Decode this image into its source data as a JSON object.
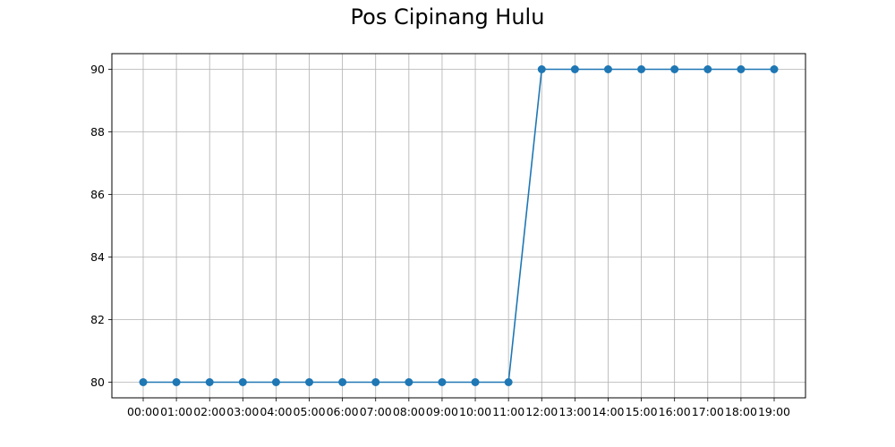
{
  "chart_data": {
    "type": "line",
    "title": "Pos Cipinang Hulu",
    "xlabel": "",
    "ylabel": "",
    "categories": [
      "00:00",
      "01:00",
      "02:00",
      "03:00",
      "04:00",
      "05:00",
      "06:00",
      "07:00",
      "08:00",
      "09:00",
      "10:00",
      "11:00",
      "12:00",
      "13:00",
      "14:00",
      "15:00",
      "16:00",
      "17:00",
      "18:00",
      "19:00"
    ],
    "series": [
      {
        "values": [
          80,
          80,
          80,
          80,
          80,
          80,
          80,
          80,
          80,
          80,
          80,
          80,
          90,
          90,
          90,
          90,
          90,
          90,
          90,
          90
        ]
      }
    ],
    "yticks": [
      "80",
      "82",
      "84",
      "86",
      "88",
      "90"
    ],
    "ylim": [
      79.5,
      90.5
    ],
    "grid": true,
    "line_color": "#1f77b4",
    "grid_color": "#b0b0b0"
  }
}
